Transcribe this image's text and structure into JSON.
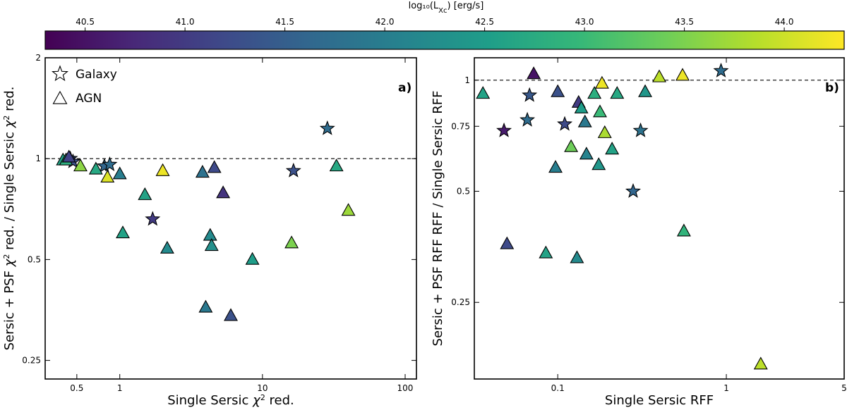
{
  "colorbar": {
    "label": "log$_{10}$(L$_{Xc}$) [erg/s]",
    "label_text": "log₁₀(L",
    "label_sub": "Xc",
    "label_tail": ") [erg/s]",
    "range": [
      40.3,
      44.3
    ],
    "ticks": [
      40.5,
      41.0,
      41.5,
      42.0,
      42.5,
      43.0,
      43.5,
      44.0
    ],
    "tick_labels": [
      "40.5",
      "41.0",
      "41.5",
      "42.0",
      "42.5",
      "43.0",
      "43.5",
      "44.0"
    ],
    "colormap": "viridis",
    "colormap_stops": [
      "#440154",
      "#482878",
      "#3e4989",
      "#31688e",
      "#26828e",
      "#1f9e89",
      "#35b779",
      "#6ece58",
      "#b5de2b",
      "#fde725"
    ]
  },
  "legend": {
    "position": "top-left of left panel",
    "entries": [
      {
        "label": "Galaxy",
        "marker": "star-icon"
      },
      {
        "label": "AGN",
        "marker": "triangle-icon"
      }
    ]
  },
  "chart_data": [
    {
      "type": "scatter",
      "panel_label": "a)",
      "xscale": "log",
      "yscale": "log",
      "xlim": [
        0.3,
        120
      ],
      "ylim": [
        0.22,
        2.0
      ],
      "xlabel": "Single Sersic χ² red.",
      "ylabel": "Sersic + PSF χ² red. / Single Sersic χ² red.",
      "xlabel_parts": [
        "Single Sersic ",
        "χ",
        "2",
        " red."
      ],
      "ylabel_parts": [
        "Sersic + PSF ",
        "χ",
        "2",
        " red. / Single Sersic ",
        "χ",
        "2",
        " red."
      ],
      "xticks": [
        0.5,
        1,
        10,
        100
      ],
      "xtick_labels": [
        "0.5",
        "1",
        "10",
        "100"
      ],
      "yticks": [
        0.25,
        0.5,
        1,
        2
      ],
      "ytick_labels": [
        "0.25",
        "0.5",
        "1",
        "2"
      ],
      "reference_line_y": 1,
      "series": [
        {
          "name": "Galaxy",
          "marker": "star",
          "points": [
            {
              "x": 0.45,
              "y": 1.0,
              "c": 41.4
            },
            {
              "x": 0.47,
              "y": 0.98,
              "c": 41.3
            },
            {
              "x": 0.78,
              "y": 0.95,
              "c": 41.6
            },
            {
              "x": 0.85,
              "y": 0.96,
              "c": 41.7
            },
            {
              "x": 1.7,
              "y": 0.66,
              "c": 41.0
            },
            {
              "x": 16.5,
              "y": 0.92,
              "c": 41.3
            },
            {
              "x": 28.5,
              "y": 1.23,
              "c": 41.7
            }
          ]
        },
        {
          "name": "AGN",
          "marker": "triangle",
          "points": [
            {
              "x": 0.4,
              "y": 0.99,
              "c": 42.6
            },
            {
              "x": 0.42,
              "y": 0.99,
              "c": 42.8
            },
            {
              "x": 0.44,
              "y": 1.01,
              "c": 41.1
            },
            {
              "x": 0.53,
              "y": 0.95,
              "c": 43.6
            },
            {
              "x": 0.68,
              "y": 0.93,
              "c": 42.7
            },
            {
              "x": 0.82,
              "y": 0.88,
              "c": 44.1
            },
            {
              "x": 1.0,
              "y": 0.9,
              "c": 42.0
            },
            {
              "x": 1.05,
              "y": 0.6,
              "c": 42.6
            },
            {
              "x": 1.5,
              "y": 0.78,
              "c": 42.6
            },
            {
              "x": 2.0,
              "y": 0.92,
              "c": 44.2
            },
            {
              "x": 2.15,
              "y": 0.54,
              "c": 42.2
            },
            {
              "x": 3.8,
              "y": 0.91,
              "c": 41.8
            },
            {
              "x": 4.0,
              "y": 0.36,
              "c": 41.9
            },
            {
              "x": 4.3,
              "y": 0.59,
              "c": 42.2
            },
            {
              "x": 4.4,
              "y": 0.55,
              "c": 42.3
            },
            {
              "x": 4.6,
              "y": 0.94,
              "c": 41.2
            },
            {
              "x": 5.3,
              "y": 0.79,
              "c": 40.9
            },
            {
              "x": 6.0,
              "y": 0.34,
              "c": 41.3
            },
            {
              "x": 8.5,
              "y": 0.5,
              "c": 42.5
            },
            {
              "x": 33.0,
              "y": 0.95,
              "c": 42.7
            },
            {
              "x": 16.0,
              "y": 0.56,
              "c": 43.5
            },
            {
              "x": 40.0,
              "y": 0.7,
              "c": 43.7
            }
          ]
        }
      ]
    },
    {
      "type": "scatter",
      "panel_label": "b)",
      "xscale": "log",
      "yscale": "log",
      "xlim": [
        0.032,
        5
      ],
      "ylim": [
        0.155,
        1.15
      ],
      "xlabel": "Single Sersic RFF",
      "ylabel": "Sersic + PSF RFF RFF / Single Sersic RFF",
      "xticks": [
        0.1,
        1,
        5
      ],
      "xtick_labels": [
        "0.1",
        "1",
        "5"
      ],
      "yticks": [
        0.25,
        0.5,
        0.75,
        1
      ],
      "ytick_labels": [
        "0.25",
        "0.5",
        "0.75",
        "1"
      ],
      "reference_line_y": 1,
      "series": [
        {
          "name": "Galaxy",
          "marker": "star",
          "points": [
            {
              "x": 0.048,
              "y": 0.73,
              "c": 40.6
            },
            {
              "x": 0.066,
              "y": 0.78,
              "c": 41.7
            },
            {
              "x": 0.068,
              "y": 0.91,
              "c": 41.4
            },
            {
              "x": 0.11,
              "y": 0.76,
              "c": 41.2
            },
            {
              "x": 0.28,
              "y": 0.5,
              "c": 41.6
            },
            {
              "x": 0.31,
              "y": 0.73,
              "c": 41.8
            },
            {
              "x": 0.93,
              "y": 1.06,
              "c": 41.7
            }
          ]
        },
        {
          "name": "AGN",
          "marker": "triangle",
          "points": [
            {
              "x": 0.036,
              "y": 0.92,
              "c": 42.6
            },
            {
              "x": 0.05,
              "y": 0.36,
              "c": 41.2
            },
            {
              "x": 0.072,
              "y": 1.04,
              "c": 40.5
            },
            {
              "x": 0.085,
              "y": 0.34,
              "c": 42.6
            },
            {
              "x": 0.097,
              "y": 0.58,
              "c": 42.0
            },
            {
              "x": 0.1,
              "y": 0.93,
              "c": 41.3
            },
            {
              "x": 0.12,
              "y": 0.66,
              "c": 43.4
            },
            {
              "x": 0.13,
              "y": 0.33,
              "c": 42.2
            },
            {
              "x": 0.133,
              "y": 0.87,
              "c": 41.0
            },
            {
              "x": 0.138,
              "y": 0.84,
              "c": 42.5
            },
            {
              "x": 0.145,
              "y": 0.77,
              "c": 41.9
            },
            {
              "x": 0.148,
              "y": 0.63,
              "c": 42.1
            },
            {
              "x": 0.165,
              "y": 0.92,
              "c": 42.8
            },
            {
              "x": 0.175,
              "y": 0.59,
              "c": 42.4
            },
            {
              "x": 0.178,
              "y": 0.82,
              "c": 43.0
            },
            {
              "x": 0.183,
              "y": 0.98,
              "c": 44.2
            },
            {
              "x": 0.19,
              "y": 0.72,
              "c": 43.8
            },
            {
              "x": 0.21,
              "y": 0.65,
              "c": 42.6
            },
            {
              "x": 0.225,
              "y": 0.92,
              "c": 42.7
            },
            {
              "x": 0.33,
              "y": 0.93,
              "c": 42.4
            },
            {
              "x": 0.4,
              "y": 1.02,
              "c": 43.9
            },
            {
              "x": 0.55,
              "y": 1.03,
              "c": 44.2
            },
            {
              "x": 0.56,
              "y": 0.39,
              "c": 42.9
            },
            {
              "x": 1.6,
              "y": 0.17,
              "c": 43.9
            }
          ]
        }
      ]
    }
  ]
}
